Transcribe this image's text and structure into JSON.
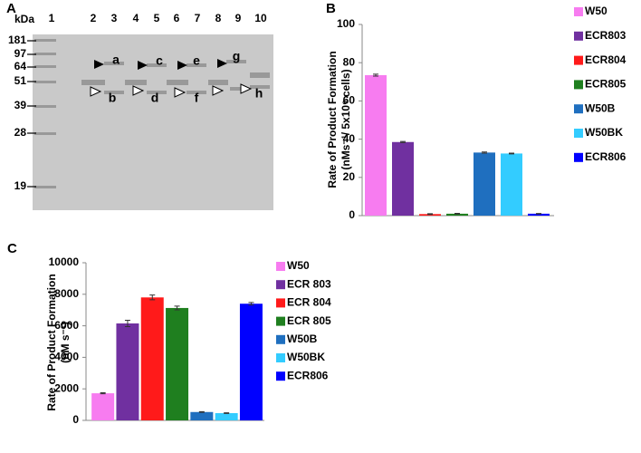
{
  "gel": {
    "panel_label": "A",
    "unit": "kDa",
    "lanes": [
      "1",
      "2",
      "3",
      "4",
      "5",
      "6",
      "7",
      "8",
      "9",
      "10"
    ],
    "markers": [
      "181",
      "97",
      "64",
      "51",
      "39",
      "28",
      "19"
    ],
    "band_labels": [
      "a",
      "b",
      "c",
      "d",
      "e",
      "f",
      "g",
      "h"
    ]
  },
  "chart_data": [
    {
      "type": "bar",
      "panel_label": "B",
      "ylabel": [
        "Rate of Product Formation",
        "(nMs⁻¹/ 5x10⁶ cells)"
      ],
      "categories": [
        "W50",
        "ECR803",
        "ECR804",
        "ECR805",
        "W50B",
        "W50BK",
        "ECR806"
      ],
      "values": [
        73.5,
        38.5,
        0.8,
        1.0,
        33,
        32.5,
        1.0
      ],
      "errors": [
        0.5,
        0.3,
        0.2,
        0.2,
        0.3,
        0.2,
        0.1
      ],
      "colors": [
        "#f77cf0",
        "#7030a0",
        "#ff1a1a",
        "#1f7f1f",
        "#1f6fbf",
        "#33ccff",
        "#0000ff"
      ],
      "ylim": [
        0,
        100
      ],
      "yticks": [
        0,
        20,
        40,
        60,
        80,
        100
      ],
      "legend": "right"
    },
    {
      "type": "bar",
      "panel_label": "C",
      "ylabel": [
        "Rate of Product Formation",
        "(nM s⁻¹)"
      ],
      "categories": [
        "W50",
        "ECR 803",
        "ECR 804",
        "ECR 805",
        "W50B",
        "W50BK",
        "ECR806"
      ],
      "values": [
        1720,
        6150,
        7800,
        7130,
        530,
        460,
        7400
      ],
      "errors": [
        30,
        200,
        150,
        120,
        20,
        20,
        80
      ],
      "colors": [
        "#f77cf0",
        "#7030a0",
        "#ff1a1a",
        "#1f7f1f",
        "#1f6fbf",
        "#33ccff",
        "#0000ff"
      ],
      "ylim": [
        0,
        10000
      ],
      "yticks": [
        0,
        2000,
        4000,
        6000,
        8000,
        10000
      ],
      "legend": "right"
    }
  ]
}
